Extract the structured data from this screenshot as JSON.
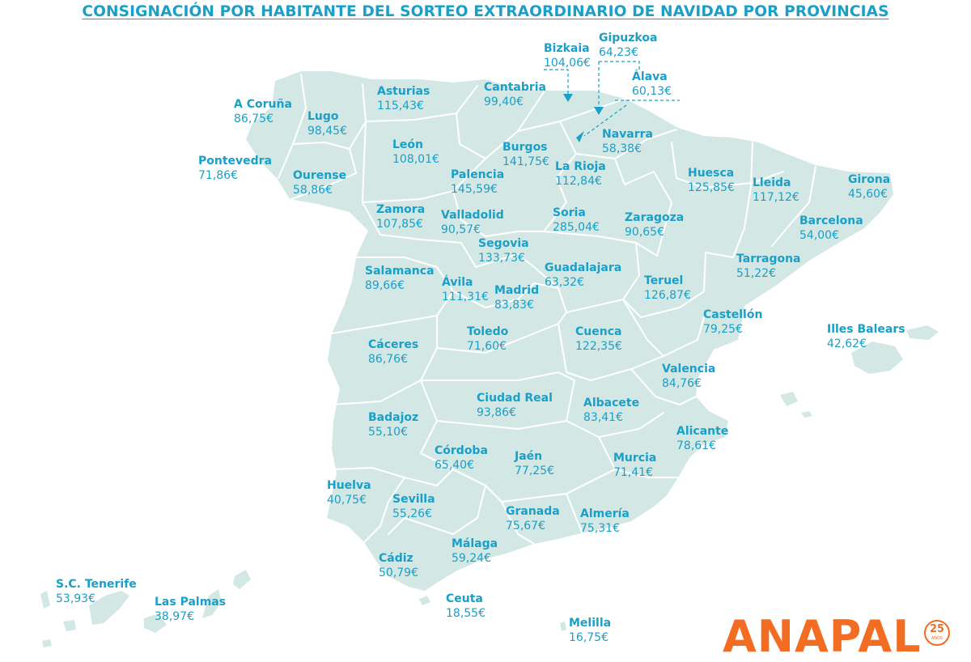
{
  "title": "CONSIGNACIÓN POR HABITANTE DEL SORTEO EXTRAORDINARIO DE NAVIDAD POR PROVINCIAS",
  "colors": {
    "accent": "#1a9fc8",
    "map_fill": "#d3e8e4",
    "border": "#ffffff",
    "logo": "#f26d21"
  },
  "provinces": [
    {
      "id": "bizkaia",
      "name": "Bizkaia",
      "value": "104,06€"
    },
    {
      "id": "gipuzkoa",
      "name": "Gipuzkoa",
      "value": "64,23€"
    },
    {
      "id": "alava",
      "name": "Álava",
      "value": "60,13€"
    },
    {
      "id": "asturias",
      "name": "Asturias",
      "value": "115,43€"
    },
    {
      "id": "cantabria",
      "name": "Cantabria",
      "value": "99,40€"
    },
    {
      "id": "a-coruna",
      "name": "A Coruña",
      "value": "86,75€"
    },
    {
      "id": "lugo",
      "name": "Lugo",
      "value": "98,45€"
    },
    {
      "id": "pontevedra",
      "name": "Pontevedra",
      "value": "71,86€"
    },
    {
      "id": "ourense",
      "name": "Ourense",
      "value": "58,86€"
    },
    {
      "id": "leon",
      "name": "León",
      "value": "108,01€"
    },
    {
      "id": "burgos",
      "name": "Burgos",
      "value": "141,75€"
    },
    {
      "id": "navarra",
      "name": "Navarra",
      "value": "58,38€"
    },
    {
      "id": "la-rioja",
      "name": "La Rioja",
      "value": "112,84€"
    },
    {
      "id": "palencia",
      "name": "Palencia",
      "value": "145,59€"
    },
    {
      "id": "huesca",
      "name": "Huesca",
      "value": "125,85€"
    },
    {
      "id": "lleida",
      "name": "Lleida",
      "value": "117,12€"
    },
    {
      "id": "girona",
      "name": "Girona",
      "value": "45,60€"
    },
    {
      "id": "zamora",
      "name": "Zamora",
      "value": "107,85€"
    },
    {
      "id": "valladolid",
      "name": "Valladolid",
      "value": "90,57€"
    },
    {
      "id": "soria",
      "name": "Soria",
      "value": "285,04€"
    },
    {
      "id": "zaragoza",
      "name": "Zaragoza",
      "value": "90,65€"
    },
    {
      "id": "barcelona",
      "name": "Barcelona",
      "value": "54,00€"
    },
    {
      "id": "segovia",
      "name": "Segovia",
      "value": "133,73€"
    },
    {
      "id": "tarragona",
      "name": "Tarragona",
      "value": "51,22€"
    },
    {
      "id": "salamanca",
      "name": "Salamanca",
      "value": "89,66€"
    },
    {
      "id": "guadalajara",
      "name": "Guadalajara",
      "value": "63,32€"
    },
    {
      "id": "avila",
      "name": "Ávila",
      "value": "111,31€"
    },
    {
      "id": "madrid",
      "name": "Madrid",
      "value": "83,83€"
    },
    {
      "id": "teruel",
      "name": "Teruel",
      "value": "126,87€"
    },
    {
      "id": "castellon",
      "name": "Castellón",
      "value": "79,25€"
    },
    {
      "id": "illes-balears",
      "name": "Illes Balears",
      "value": "42,62€"
    },
    {
      "id": "caceres",
      "name": "Cáceres",
      "value": "86,76€"
    },
    {
      "id": "toledo",
      "name": "Toledo",
      "value": "71,60€"
    },
    {
      "id": "cuenca",
      "name": "Cuenca",
      "value": "122,35€"
    },
    {
      "id": "valencia",
      "name": "Valencia",
      "value": "84,76€"
    },
    {
      "id": "ciudad-real",
      "name": "Ciudad Real",
      "value": "93,86€"
    },
    {
      "id": "albacete",
      "name": "Albacete",
      "value": "83,41€"
    },
    {
      "id": "badajoz",
      "name": "Badajoz",
      "value": "55,10€"
    },
    {
      "id": "alicante",
      "name": "Alicante",
      "value": "78,61€"
    },
    {
      "id": "cordoba",
      "name": "Córdoba",
      "value": "65,40€"
    },
    {
      "id": "jaen",
      "name": "Jaén",
      "value": "77,25€"
    },
    {
      "id": "murcia",
      "name": "Murcia",
      "value": "71,41€"
    },
    {
      "id": "huelva",
      "name": "Huelva",
      "value": "40,75€"
    },
    {
      "id": "sevilla",
      "name": "Sevilla",
      "value": "55,26€"
    },
    {
      "id": "granada",
      "name": "Granada",
      "value": "75,67€"
    },
    {
      "id": "almeria",
      "name": "Almería",
      "value": "75,31€"
    },
    {
      "id": "malaga",
      "name": "Málaga",
      "value": "59,24€"
    },
    {
      "id": "cadiz",
      "name": "Cádiz",
      "value": "50,79€"
    },
    {
      "id": "sc-tenerife",
      "name": "S.C. Tenerife",
      "value": "53,93€"
    },
    {
      "id": "las-palmas",
      "name": "Las Palmas",
      "value": "38,97€"
    },
    {
      "id": "ceuta",
      "name": "Ceuta",
      "value": "18,55€"
    },
    {
      "id": "melilla",
      "name": "Melilla",
      "value": "16,75€"
    }
  ],
  "logo": {
    "text": "ANAPAL",
    "badge_number": "25",
    "badge_text": "AÑOS"
  }
}
